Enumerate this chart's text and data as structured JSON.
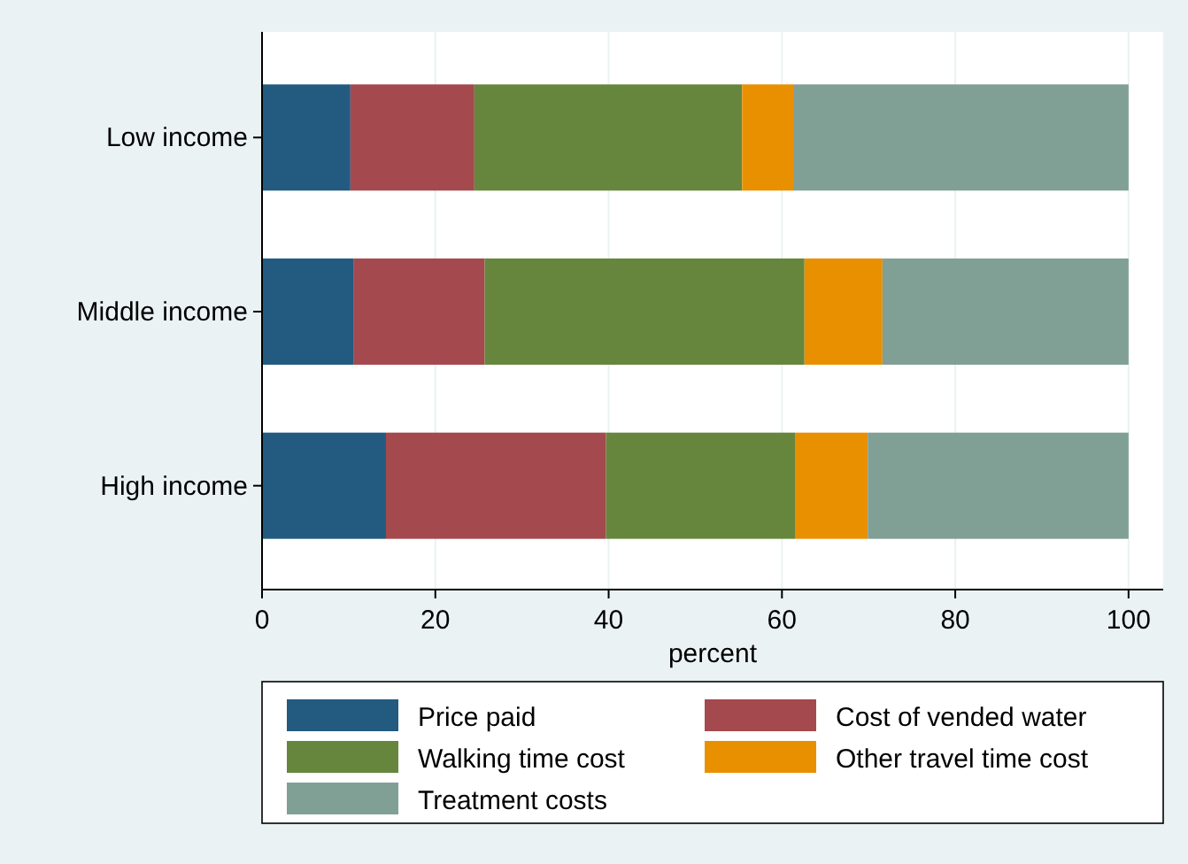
{
  "chart_data": {
    "type": "bar",
    "orientation": "horizontal",
    "stacked": true,
    "categories": [
      "Low income",
      "Middle income",
      "High income"
    ],
    "series": [
      {
        "name": "Price paid",
        "color": "#235a80",
        "values": [
          10.2,
          10.6,
          14.3
        ]
      },
      {
        "name": "Cost of vended water",
        "color": "#a4494e",
        "values": [
          14.3,
          15.1,
          25.4
        ]
      },
      {
        "name": "Walking time cost",
        "color": "#66863d",
        "values": [
          30.9,
          36.9,
          21.8
        ]
      },
      {
        "name": "Other travel time cost",
        "color": "#e99000",
        "values": [
          5.9,
          9.0,
          8.4
        ]
      },
      {
        "name": "Treatment costs",
        "color": "#80a096",
        "values": [
          38.7,
          28.4,
          30.1
        ]
      }
    ],
    "xlabel": "percent",
    "xlim": [
      0,
      104
    ],
    "xticks": [
      0,
      20,
      40,
      60,
      80,
      100
    ],
    "grid": "x",
    "legend": "bottom"
  }
}
